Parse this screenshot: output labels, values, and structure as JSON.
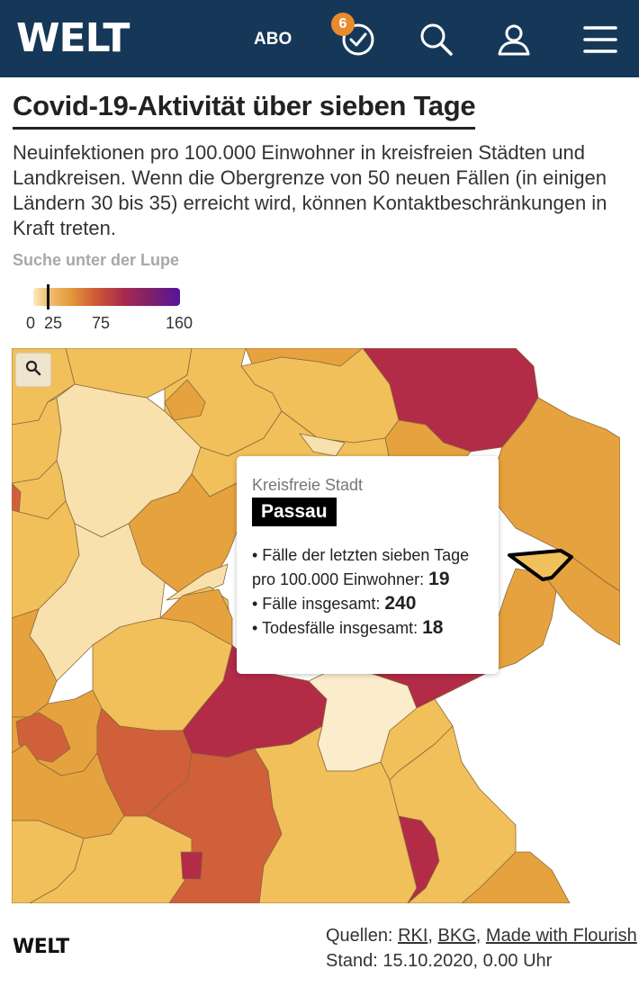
{
  "header": {
    "logo": "WELT",
    "abo_label": "ABO",
    "notification_count": "6",
    "icons": [
      "clock-check-icon",
      "search-icon",
      "user-icon",
      "menu-icon"
    ]
  },
  "article": {
    "title": "Covid-19-Aktivität über sieben Tage",
    "description": "Neuinfektionen pro 100.000 Einwohner in kreisfreien Städten und Landkreisen. Wenn die Obergrenze von 50 neuen Fällen (in einigen Ländern 30 bis 35) erreicht wird, können Kontaktbeschränkungen in Kraft treten.",
    "search_hint": "Suche unter der Lupe"
  },
  "legend": {
    "ticks": [
      "0",
      "25",
      "75",
      "160"
    ],
    "colors": [
      "#fbe9bf",
      "#f3c57b",
      "#e39b3c",
      "#cf5b36",
      "#a62a4e",
      "#7b1e6e",
      "#56149e"
    ],
    "marker_value": 19
  },
  "map": {
    "zoom_icon": "magnifier-icon",
    "region_colors": {
      "very_low": "#f8e1ad",
      "low": "#f1c05b",
      "mid": "#e6a23e",
      "high": "#d0603a",
      "very_high": "#b22b47"
    }
  },
  "tooltip": {
    "type": "Kreisfreie Stadt",
    "name": "Passau",
    "line1_prefix": "• Fälle der letzten sieben Tage",
    "line2_prefix": "pro 100.000 Einwohner: ",
    "line2_value": "19",
    "line3_prefix": "• Fälle insgesamt: ",
    "line3_value": "240",
    "line4_prefix": "• Todesfälle insgesamt: ",
    "line4_value": "18"
  },
  "footer": {
    "logo": "WELT",
    "sources_label": "Quellen: ",
    "source_links": [
      "RKI",
      "BKG",
      "Made with Flourish"
    ],
    "stand": "Stand: 15.10.2020, 0.00 Uhr"
  }
}
